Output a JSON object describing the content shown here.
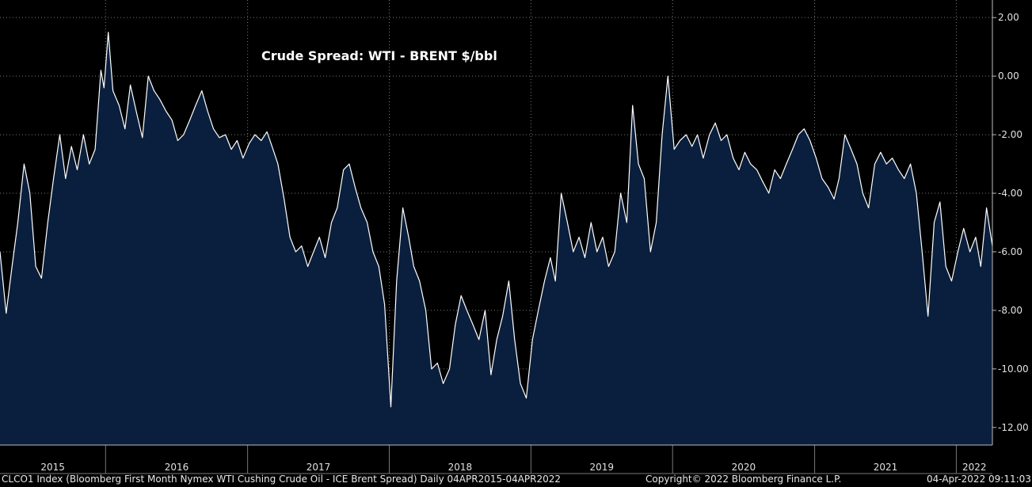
{
  "chart_data": {
    "type": "area",
    "title": "Crude Spread: WTI - BRENT $/bbl",
    "x_range": [
      "2015-04-04",
      "2022-04-04"
    ],
    "ylim": [
      -12.6,
      2.6
    ],
    "y_ticks": [
      "2.00",
      "0.00",
      "-2.00",
      "-4.00",
      "-6.00",
      "-8.00",
      "-10.00",
      "-12.00"
    ],
    "x_ticks": [
      "2015",
      "2016",
      "2017",
      "2018",
      "2019",
      "2020",
      "2021",
      "2022"
    ],
    "grid": true,
    "colors": {
      "fill": "#0a1f3d",
      "line": "#ffffff",
      "grid": "#7a7a7a",
      "background": "#000000"
    },
    "series": [
      {
        "points": [
          [
            "2015-04-04",
            -6.0
          ],
          [
            "2015-04-20",
            -8.1
          ],
          [
            "2015-05-05",
            -6.5
          ],
          [
            "2015-05-20",
            -5.0
          ],
          [
            "2015-06-05",
            -3.0
          ],
          [
            "2015-06-20",
            -4.0
          ],
          [
            "2015-07-05",
            -6.5
          ],
          [
            "2015-07-20",
            -6.9
          ],
          [
            "2015-08-05",
            -5.0
          ],
          [
            "2015-08-20",
            -3.5
          ],
          [
            "2015-09-05",
            -2.0
          ],
          [
            "2015-09-20",
            -3.5
          ],
          [
            "2015-10-05",
            -2.4
          ],
          [
            "2015-10-20",
            -3.2
          ],
          [
            "2015-11-05",
            -2.0
          ],
          [
            "2015-11-20",
            -3.0
          ],
          [
            "2015-12-05",
            -2.5
          ],
          [
            "2015-12-20",
            0.2
          ],
          [
            "2015-12-28",
            -0.4
          ],
          [
            "2016-01-08",
            1.5
          ],
          [
            "2016-01-20",
            -0.5
          ],
          [
            "2016-02-05",
            -1.0
          ],
          [
            "2016-02-20",
            -1.8
          ],
          [
            "2016-03-05",
            -0.3
          ],
          [
            "2016-03-20",
            -1.2
          ],
          [
            "2016-04-05",
            -2.1
          ],
          [
            "2016-04-20",
            0.0
          ],
          [
            "2016-05-05",
            -0.5
          ],
          [
            "2016-05-20",
            -0.8
          ],
          [
            "2016-06-05",
            -1.2
          ],
          [
            "2016-06-20",
            -1.5
          ],
          [
            "2016-07-05",
            -2.2
          ],
          [
            "2016-07-20",
            -2.0
          ],
          [
            "2016-08-05",
            -1.5
          ],
          [
            "2016-08-20",
            -1.0
          ],
          [
            "2016-09-05",
            -0.5
          ],
          [
            "2016-09-20",
            -1.2
          ],
          [
            "2016-10-05",
            -1.8
          ],
          [
            "2016-10-20",
            -2.1
          ],
          [
            "2016-11-05",
            -2.0
          ],
          [
            "2016-11-20",
            -2.5
          ],
          [
            "2016-12-05",
            -2.2
          ],
          [
            "2016-12-20",
            -2.8
          ],
          [
            "2017-01-05",
            -2.3
          ],
          [
            "2017-01-20",
            -2.0
          ],
          [
            "2017-02-05",
            -2.2
          ],
          [
            "2017-02-20",
            -1.9
          ],
          [
            "2017-03-05",
            -2.4
          ],
          [
            "2017-03-20",
            -3.0
          ],
          [
            "2017-04-05",
            -4.2
          ],
          [
            "2017-04-20",
            -5.5
          ],
          [
            "2017-05-05",
            -6.0
          ],
          [
            "2017-05-20",
            -5.8
          ],
          [
            "2017-06-05",
            -6.5
          ],
          [
            "2017-06-20",
            -6.0
          ],
          [
            "2017-07-05",
            -5.5
          ],
          [
            "2017-07-20",
            -6.2
          ],
          [
            "2017-08-05",
            -5.0
          ],
          [
            "2017-08-20",
            -4.5
          ],
          [
            "2017-09-05",
            -3.2
          ],
          [
            "2017-09-20",
            -3.0
          ],
          [
            "2017-10-05",
            -3.8
          ],
          [
            "2017-10-20",
            -4.5
          ],
          [
            "2017-11-05",
            -5.0
          ],
          [
            "2017-11-20",
            -6.0
          ],
          [
            "2017-12-05",
            -6.5
          ],
          [
            "2017-12-20",
            -7.8
          ],
          [
            "2018-01-05",
            -11.3
          ],
          [
            "2018-01-20",
            -7.0
          ],
          [
            "2018-02-05",
            -4.5
          ],
          [
            "2018-02-20",
            -5.5
          ],
          [
            "2018-03-05",
            -6.5
          ],
          [
            "2018-03-20",
            -7.0
          ],
          [
            "2018-04-05",
            -8.0
          ],
          [
            "2018-04-20",
            -10.0
          ],
          [
            "2018-05-05",
            -9.8
          ],
          [
            "2018-05-20",
            -10.5
          ],
          [
            "2018-06-05",
            -10.0
          ],
          [
            "2018-06-20",
            -8.5
          ],
          [
            "2018-07-05",
            -7.5
          ],
          [
            "2018-07-20",
            -8.0
          ],
          [
            "2018-08-05",
            -8.5
          ],
          [
            "2018-08-20",
            -9.0
          ],
          [
            "2018-09-05",
            -8.0
          ],
          [
            "2018-09-20",
            -10.2
          ],
          [
            "2018-10-05",
            -9.0
          ],
          [
            "2018-10-20",
            -8.2
          ],
          [
            "2018-11-05",
            -7.0
          ],
          [
            "2018-11-20",
            -9.0
          ],
          [
            "2018-12-05",
            -10.5
          ],
          [
            "2018-12-20",
            -11.0
          ],
          [
            "2019-01-05",
            -9.0
          ],
          [
            "2019-01-20",
            -8.0
          ],
          [
            "2019-02-05",
            -7.0
          ],
          [
            "2019-02-20",
            -6.2
          ],
          [
            "2019-03-05",
            -7.0
          ],
          [
            "2019-03-20",
            -4.0
          ],
          [
            "2019-04-05",
            -5.0
          ],
          [
            "2019-04-20",
            -6.0
          ],
          [
            "2019-05-05",
            -5.5
          ],
          [
            "2019-05-20",
            -6.2
          ],
          [
            "2019-06-05",
            -5.0
          ],
          [
            "2019-06-20",
            -6.0
          ],
          [
            "2019-07-05",
            -5.5
          ],
          [
            "2019-07-20",
            -6.5
          ],
          [
            "2019-08-05",
            -6.0
          ],
          [
            "2019-08-20",
            -4.0
          ],
          [
            "2019-09-05",
            -5.0
          ],
          [
            "2019-09-20",
            -1.0
          ],
          [
            "2019-10-05",
            -3.0
          ],
          [
            "2019-10-20",
            -3.5
          ],
          [
            "2019-11-05",
            -6.0
          ],
          [
            "2019-11-20",
            -5.0
          ],
          [
            "2019-12-05",
            -2.0
          ],
          [
            "2019-12-20",
            0.0
          ],
          [
            "2020-01-05",
            -2.5
          ],
          [
            "2020-01-20",
            -2.2
          ],
          [
            "2020-02-05",
            -2.0
          ],
          [
            "2020-02-20",
            -2.4
          ],
          [
            "2020-03-05",
            -2.0
          ],
          [
            "2020-03-20",
            -2.8
          ],
          [
            "2020-04-05",
            -2.0
          ],
          [
            "2020-04-20",
            -1.6
          ],
          [
            "2020-05-05",
            -2.2
          ],
          [
            "2020-05-20",
            -2.0
          ],
          [
            "2020-06-05",
            -2.8
          ],
          [
            "2020-06-20",
            -3.2
          ],
          [
            "2020-07-05",
            -2.6
          ],
          [
            "2020-07-20",
            -3.0
          ],
          [
            "2020-08-05",
            -3.2
          ],
          [
            "2020-08-20",
            -3.6
          ],
          [
            "2020-09-05",
            -4.0
          ],
          [
            "2020-09-20",
            -3.2
          ],
          [
            "2020-10-05",
            -3.5
          ],
          [
            "2020-10-20",
            -3.0
          ],
          [
            "2020-11-05",
            -2.5
          ],
          [
            "2020-11-20",
            -2.0
          ],
          [
            "2020-12-05",
            -1.8
          ],
          [
            "2020-12-20",
            -2.2
          ],
          [
            "2021-01-05",
            -2.8
          ],
          [
            "2021-01-20",
            -3.5
          ],
          [
            "2021-02-05",
            -3.8
          ],
          [
            "2021-02-20",
            -4.2
          ],
          [
            "2021-03-05",
            -3.5
          ],
          [
            "2021-03-20",
            -2.0
          ],
          [
            "2021-04-05",
            -2.5
          ],
          [
            "2021-04-20",
            -3.0
          ],
          [
            "2021-05-05",
            -4.0
          ],
          [
            "2021-05-20",
            -4.5
          ],
          [
            "2021-06-05",
            -3.0
          ],
          [
            "2021-06-20",
            -2.6
          ],
          [
            "2021-07-05",
            -3.0
          ],
          [
            "2021-07-20",
            -2.8
          ],
          [
            "2021-08-05",
            -3.2
          ],
          [
            "2021-08-20",
            -3.5
          ],
          [
            "2021-09-05",
            -3.0
          ],
          [
            "2021-09-20",
            -4.0
          ],
          [
            "2021-10-05",
            -6.0
          ],
          [
            "2021-10-20",
            -8.2
          ],
          [
            "2021-11-05",
            -5.0
          ],
          [
            "2021-11-20",
            -4.3
          ],
          [
            "2021-12-05",
            -6.5
          ],
          [
            "2021-12-20",
            -7.0
          ],
          [
            "2022-01-05",
            -6.0
          ],
          [
            "2022-01-20",
            -5.2
          ],
          [
            "2022-02-05",
            -6.0
          ],
          [
            "2022-02-20",
            -5.5
          ],
          [
            "2022-03-05",
            -6.5
          ],
          [
            "2022-03-20",
            -4.5
          ],
          [
            "2022-04-04",
            -5.8
          ]
        ]
      }
    ]
  },
  "footer": {
    "description": "CLCO1 Index (Bloomberg First Month Nymex WTI Cushing Crude Oil - ICE Brent Spread)  Daily 04APR2015-04APR2022",
    "copyright": "Copyright© 2022 Bloomberg Finance L.P.",
    "timestamp": "04-Apr-2022 09:11:03"
  }
}
